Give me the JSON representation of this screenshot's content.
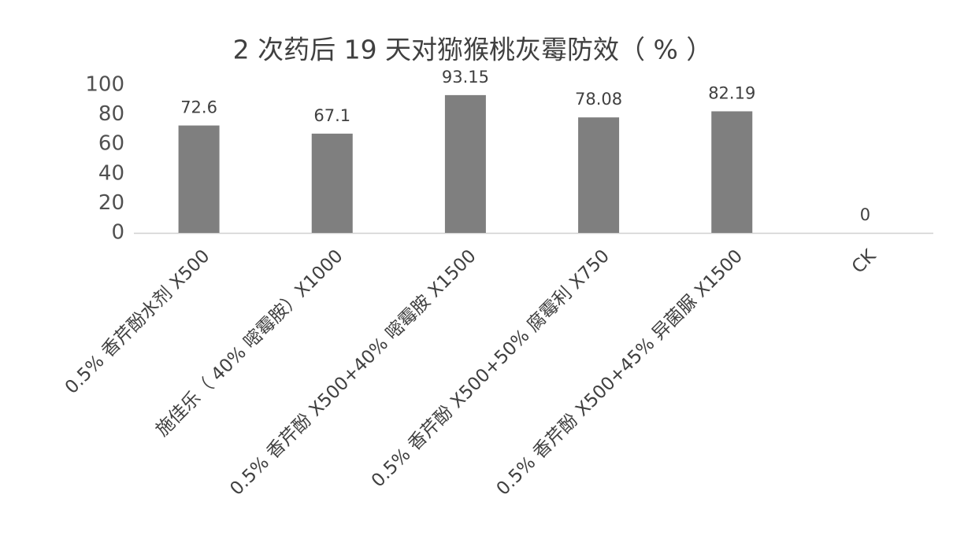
{
  "chart_data": {
    "type": "bar",
    "title": "2 次药后 19 天对猕猴桃灰霉防效（ % ）",
    "categories": [
      "0.5% 香芹酚水剂 X500",
      "施佳乐（ 40% 嘧霉胺）X1000",
      "0.5% 香芹酚 X500+40% 嘧霉胺 X1500",
      "0.5% 香芹酚 X500+50% 腐霉利 X750",
      "0.5% 香芹酚 X500+45% 异菌脲 X1500",
      "CK"
    ],
    "values": [
      72.6,
      67.1,
      93.15,
      78.08,
      82.19,
      0
    ],
    "color": "#7f7f7f",
    "ylim": [
      0,
      100
    ],
    "yticks": [
      0,
      20,
      40,
      60,
      80,
      100
    ]
  }
}
